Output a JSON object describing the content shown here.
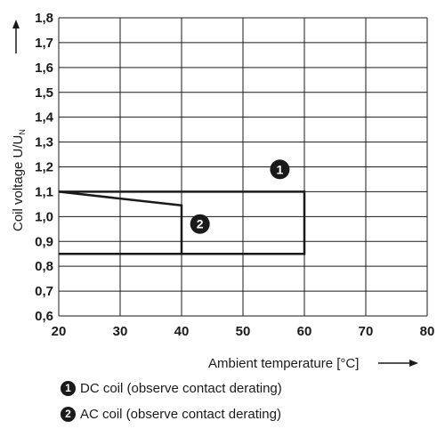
{
  "chart_data": {
    "type": "line",
    "ylabel": "Coil voltage U/U",
    "ylabel_subscript": "N",
    "xlabel": "Ambient temperature [°C]",
    "x_ticks": [
      "20",
      "30",
      "40",
      "50",
      "60",
      "70",
      "80"
    ],
    "y_ticks": [
      "0,6",
      "0,7",
      "0,8",
      "0,9",
      "1,0",
      "1,1",
      "1,2",
      "1,3",
      "1,4",
      "1,5",
      "1,6",
      "1,7",
      "1,8"
    ],
    "xlim": [
      20,
      80
    ],
    "ylim": [
      0.6,
      1.8
    ],
    "grid": true,
    "series": [
      {
        "marker": "1",
        "name": "DC coil (observe contact derating)",
        "points": [
          [
            20,
            1.1
          ],
          [
            60,
            1.1
          ],
          [
            60,
            0.85
          ],
          [
            20,
            0.85
          ]
        ],
        "marker_at": [
          56,
          1.19
        ]
      },
      {
        "marker": "2",
        "name": "AC coil (observe contact derating)",
        "points": [
          [
            20,
            1.1
          ],
          [
            40,
            1.045
          ],
          [
            40,
            0.85
          ],
          [
            20,
            0.85
          ]
        ],
        "marker_at": [
          43,
          0.97
        ]
      }
    ],
    "colors": {
      "line": "#1a1a1a",
      "grid": "#1a1a1a",
      "marker": "#1a1a1a"
    }
  },
  "legend": [
    {
      "badge": "1",
      "text": "DC coil (observe contact derating)"
    },
    {
      "badge": "2",
      "text": "AC coil (observe contact derating)"
    }
  ]
}
